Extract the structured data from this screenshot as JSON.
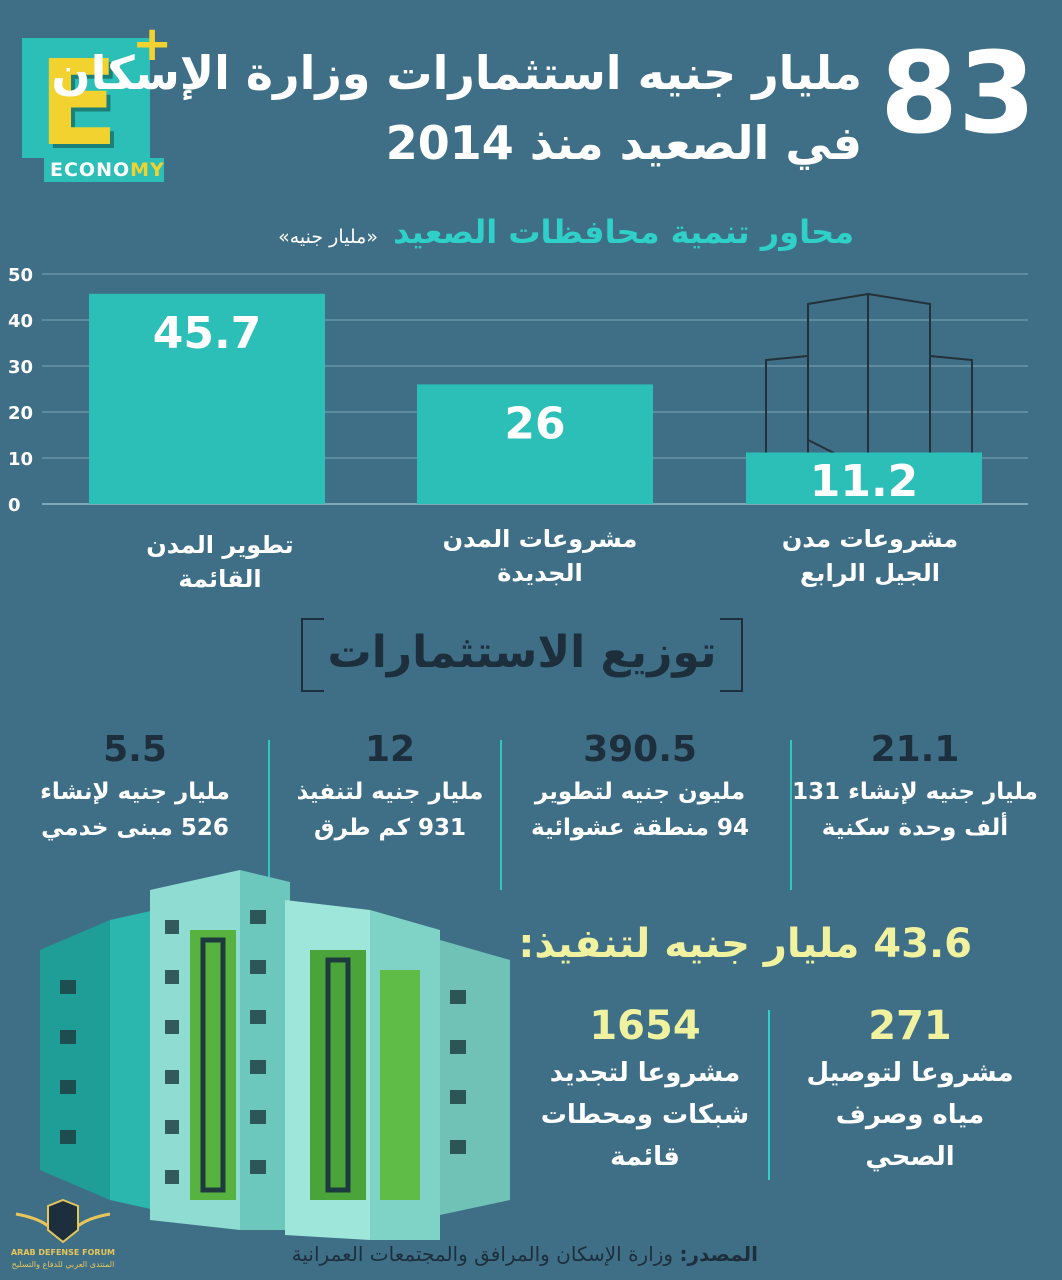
{
  "logo": {
    "letter": "E",
    "plus": "+",
    "word_pre": "ECONO",
    "word_hl": "MY",
    "colors": {
      "teal": "#2cbfb7",
      "yellow": "#f2d22f"
    }
  },
  "header": {
    "big_number": "83",
    "title_line1": "مليار جنيه استثمارات وزارة الإسكان",
    "title_line2": "في الصعيد منذ 2014"
  },
  "subtitle": {
    "main": "محاور تنمية محافظات الصعيد",
    "unit": "«مليار جنيه»"
  },
  "chart_data": {
    "type": "bar",
    "categories": [
      "تطوير المدن القائمة",
      "مشروعات المدن الجديدة",
      "مشروعات مدن الجيل الرابع"
    ],
    "category_lines": [
      [
        "تطوير المدن",
        "القائمة"
      ],
      [
        "مشروعات المدن",
        "الجديدة"
      ],
      [
        "مشروعات مدن",
        "الجيل الرابع"
      ]
    ],
    "values": [
      45.7,
      26,
      11.2
    ],
    "value_labels": [
      "45.7",
      "26",
      "11.2"
    ],
    "ylim": [
      0,
      50
    ],
    "yticks": [
      0,
      10,
      20,
      30,
      40,
      50
    ],
    "grid": true,
    "bar_color": "#2cbfb7"
  },
  "distribution": {
    "title": "توزيع الاستثمارات",
    "items": [
      {
        "num": "21.1",
        "text": "مليار جنيه لإنشاء 131\nألف وحدة سكنية"
      },
      {
        "num": "390.5",
        "text": "مليون جنيه لتطوير\n94 منطقة عشوائية"
      },
      {
        "num": "12",
        "text": "مليار جنيه لتنفيذ\n931 كم طرق"
      },
      {
        "num": "5.5",
        "text": "مليار جنيه لإنشاء\n526 مبنى خدمي"
      }
    ]
  },
  "execution": {
    "title": "43.6 مليار جنيه لتنفيذ:",
    "items": [
      {
        "num": "271",
        "text": "مشروعا لتوصيل\nمياه وصرف\nالصحي"
      },
      {
        "num": "1654",
        "text": "مشروعا لتجديد\nشبكات ومحطات\nقائمة"
      }
    ]
  },
  "source": {
    "label": "المصدر:",
    "text": "وزارة الإسكان والمرافق والمجتمعات العمرانية"
  },
  "forum": {
    "line1": "ARAB DEFENSE FORUM",
    "line2": "المنتدى العربي للدفاع والتسليح"
  }
}
